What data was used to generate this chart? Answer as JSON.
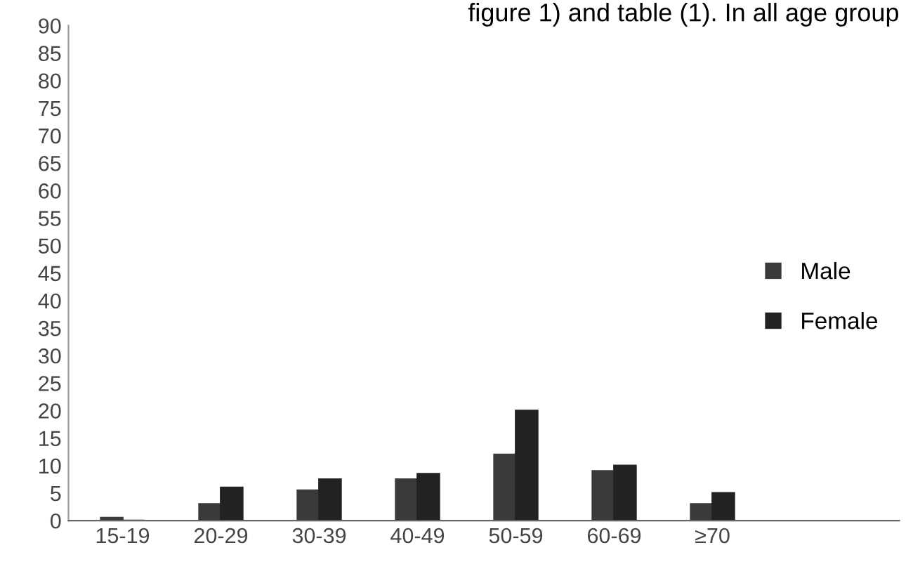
{
  "chart_data": {
    "type": "bar",
    "annotations": [
      "figure 1) and table (1). In all age group"
    ],
    "categories": [
      "15-19",
      "20-29",
      "30-39",
      "40-49",
      "50-59",
      "60-69",
      "≥70"
    ],
    "series": [
      {
        "name": "Male",
        "color": "#3a3a3a",
        "values": [
          0.5,
          3,
          5.5,
          7.5,
          12,
          9,
          3
        ]
      },
      {
        "name": "Female",
        "color": "#222222",
        "values": [
          0,
          6,
          7.5,
          8.5,
          20,
          10,
          5
        ]
      }
    ],
    "ylim": [
      0,
      90
    ],
    "yticks": [
      0,
      5,
      10,
      15,
      20,
      25,
      30,
      35,
      40,
      45,
      50,
      55,
      60,
      65,
      70,
      75,
      80,
      85,
      90
    ],
    "grid": false,
    "legend": "right"
  }
}
